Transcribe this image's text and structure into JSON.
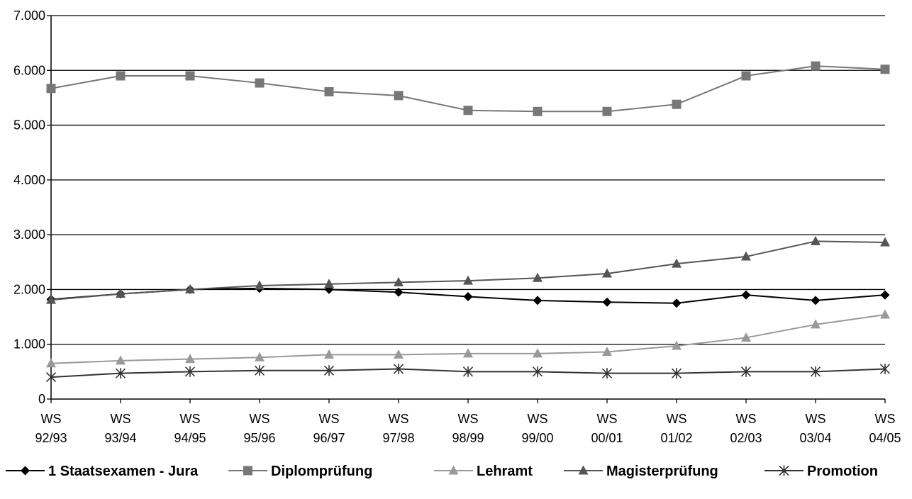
{
  "chart_data": {
    "type": "line",
    "title": "",
    "xlabel": "",
    "ylabel": "",
    "ylim": [
      0,
      7000
    ],
    "y_ticks": [
      "0",
      "1.000",
      "2.000",
      "3.000",
      "4.000",
      "5.000",
      "6.000",
      "7.000"
    ],
    "y_tick_values": [
      0,
      1000,
      2000,
      3000,
      4000,
      5000,
      6000,
      7000
    ],
    "grid": "horizontal",
    "legend_position": "bottom",
    "categories": [
      [
        "WS",
        "92/93"
      ],
      [
        "WS",
        "93/94"
      ],
      [
        "WS",
        "94/95"
      ],
      [
        "WS",
        "95/96"
      ],
      [
        "WS",
        "96/97"
      ],
      [
        "WS",
        "97/98"
      ],
      [
        "WS",
        "98/99"
      ],
      [
        "WS",
        "99/00"
      ],
      [
        "WS",
        "00/01"
      ],
      [
        "WS",
        "01/02"
      ],
      [
        "WS",
        "02/03"
      ],
      [
        "WS",
        "03/04"
      ],
      [
        "WS",
        "04/05"
      ]
    ],
    "series": [
      {
        "name": "1 Staatsexamen - Jura",
        "color": "#000000",
        "marker": "diamond",
        "values": [
          1820,
          1920,
          2000,
          2020,
          2000,
          1950,
          1870,
          1800,
          1770,
          1750,
          1900,
          1800,
          1900
        ]
      },
      {
        "name": "Diplomprüfung",
        "color": "#777777",
        "marker": "square",
        "values": [
          5670,
          5900,
          5900,
          5770,
          5610,
          5540,
          5270,
          5250,
          5250,
          5380,
          5900,
          6080,
          6020
        ]
      },
      {
        "name": "Lehramt",
        "color": "#999999",
        "marker": "triangle",
        "values": [
          650,
          700,
          730,
          760,
          810,
          810,
          830,
          830,
          860,
          970,
          1120,
          1360,
          1540
        ]
      },
      {
        "name": "Magisterprüfung",
        "color": "#555555",
        "marker": "triangle",
        "values": [
          1810,
          1920,
          2000,
          2070,
          2100,
          2130,
          2160,
          2210,
          2290,
          2470,
          2600,
          2880,
          2860
        ]
      },
      {
        "name": "Promotion",
        "color": "#333333",
        "marker": "asterisk",
        "values": [
          400,
          470,
          500,
          520,
          520,
          550,
          500,
          500,
          470,
          470,
          500,
          500,
          550
        ]
      }
    ]
  }
}
